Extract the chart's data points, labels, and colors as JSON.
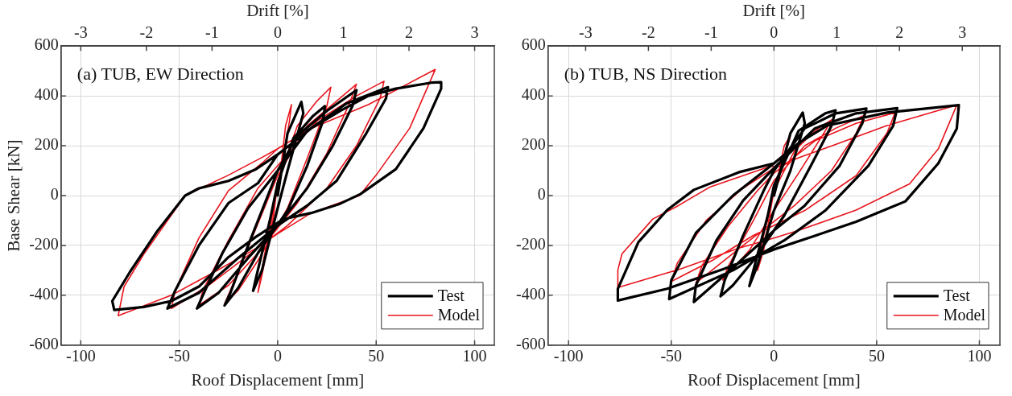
{
  "chart_data": [
    {
      "type": "line",
      "title": "(a) TUB, EW Direction",
      "xlabel": "Roof Displacement [mm]",
      "ylabel": "Base Shear [kN]",
      "x2label": "Drift [%]",
      "xlim": [
        -110,
        110
      ],
      "xticks": [
        -100,
        -50,
        0,
        50,
        100
      ],
      "ylim": [
        -600,
        600
      ],
      "yticks": [
        -600,
        -400,
        -200,
        0,
        200,
        400,
        600
      ],
      "x2lim": [
        -3.3,
        3.3
      ],
      "x2ticks": [
        -3,
        -2,
        -1,
        0,
        1,
        2,
        3
      ],
      "grid": true,
      "legend": "bottom right",
      "marker": "none",
      "line_style": "solid",
      "series": [
        {
          "name": "Test",
          "color": "#000000",
          "x": [
            0,
            5,
            12,
            13,
            5,
            0,
            -8,
            -12.5,
            -11,
            -4,
            0,
            8,
            18,
            24,
            23,
            15,
            5,
            -10,
            -20,
            -27,
            -24,
            -15,
            -5,
            0,
            10,
            25,
            40,
            38,
            28,
            15,
            0,
            -15,
            -30,
            -41,
            -38,
            -28,
            -15,
            0,
            15,
            35,
            56,
            55,
            45,
            30,
            15,
            0,
            -20,
            -40,
            -56,
            -52,
            -40,
            -25,
            -10,
            0,
            17,
            32,
            46,
            60,
            78,
            83,
            83,
            74,
            60,
            42,
            31,
            17,
            3,
            -11,
            -25,
            -40,
            -54,
            -68,
            -83,
            -84,
            -75,
            -61,
            -47,
            -40,
            -25,
            -11,
            0
          ],
          "values": [
            0,
            250,
            376,
            330,
            100,
            -50,
            -300,
            -382,
            -330,
            -100,
            50,
            230,
            320,
            359,
            300,
            120,
            -60,
            -230,
            -370,
            -441,
            -390,
            -200,
            0,
            100,
            240,
            340,
            423,
            360,
            200,
            30,
            -120,
            -250,
            -390,
            -453,
            -400,
            -230,
            -50,
            100,
            260,
            370,
            435,
            390,
            250,
            60,
            -40,
            -120,
            -250,
            -390,
            -453,
            -380,
            -200,
            -30,
            50,
            165,
            270,
            341,
            400,
            429,
            453,
            455,
            429,
            270,
            106,
            6,
            -35,
            -70,
            -94,
            -165,
            -247,
            -365,
            -423,
            -447,
            -459,
            -423,
            -306,
            -141,
            0,
            29,
            59,
            106,
            165
          ]
        },
        {
          "name": "Model",
          "color": "#e8141c",
          "x": [
            0,
            4,
            7,
            6,
            0,
            -7,
            -10,
            -8,
            -2,
            0,
            10,
            20,
            27,
            25,
            15,
            5,
            -10,
            -20,
            -27,
            -24,
            -12,
            0,
            15,
            30,
            40,
            37,
            25,
            10,
            -10,
            -25,
            -40,
            -38,
            -25,
            -10,
            0,
            20,
            40,
            54,
            52,
            40,
            25,
            5,
            -15,
            -35,
            -54,
            -52,
            -40,
            -25,
            -8,
            0,
            17,
            46,
            80,
            67,
            50,
            41.5,
            17,
            0,
            -11,
            -32,
            -54,
            -81,
            -78,
            -68,
            -47,
            -25,
            -8,
            0
          ],
          "values": [
            0,
            280,
            365,
            300,
            30,
            -250,
            -388,
            -320,
            -80,
            60,
            280,
            380,
            435,
            360,
            150,
            -50,
            -260,
            -380,
            -435,
            -380,
            -150,
            80,
            280,
            380,
            447,
            380,
            170,
            -30,
            -230,
            -360,
            -440,
            -380,
            -180,
            30,
            120,
            300,
            400,
            459,
            390,
            200,
            30,
            -120,
            -240,
            -360,
            -453,
            -380,
            -170,
            20,
            130,
            188,
            270,
            365,
            506,
            270,
            82,
            0,
            -70,
            -153,
            -212,
            -306,
            -400,
            -482,
            -365,
            -235,
            0,
            82,
            153,
            188
          ]
        }
      ]
    },
    {
      "type": "line",
      "title": "(b) TUB, NS Direction",
      "xlabel": "Roof Displacement [mm]",
      "x2label": "Drift [%]",
      "xlim": [
        -110,
        110
      ],
      "xticks": [
        -100,
        -50,
        0,
        50,
        100
      ],
      "ylim": [
        -600,
        600
      ],
      "yticks": [
        -600,
        -400,
        -200,
        0,
        200,
        400,
        600
      ],
      "x2lim": [
        -3.6,
        3.6
      ],
      "x2ticks": [
        -3,
        -2,
        -1,
        0,
        1,
        2,
        3
      ],
      "grid": true,
      "legend": "bottom right",
      "marker": "none",
      "line_style": "solid",
      "series": [
        {
          "name": "Test",
          "color": "#000000",
          "x": [
            0,
            8,
            14,
            15,
            8,
            0,
            -8,
            -12,
            -10,
            -3,
            0,
            12,
            25,
            30,
            28,
            18,
            5,
            -10,
            -20,
            -26,
            -24,
            -15,
            -5,
            0,
            15,
            30,
            45,
            43,
            32,
            15,
            0,
            -20,
            -39,
            -38,
            -28,
            -15,
            0,
            20,
            40,
            60,
            58,
            46,
            25,
            5,
            -20,
            -51,
            -50,
            -38,
            -20,
            0,
            12,
            26,
            55,
            90,
            89,
            80,
            64,
            40,
            19,
            0,
            -24,
            -52,
            -76,
            -76,
            -66,
            -52,
            -39,
            -17,
            0
          ],
          "values": [
            0,
            250,
            333,
            290,
            100,
            -60,
            -280,
            -363,
            -300,
            -80,
            40,
            260,
            330,
            342,
            280,
            120,
            -80,
            -260,
            -360,
            -404,
            -340,
            -160,
            20,
            100,
            270,
            330,
            349,
            290,
            120,
            -40,
            -140,
            -290,
            -427,
            -360,
            -180,
            -20,
            110,
            270,
            330,
            351,
            280,
            120,
            -60,
            -180,
            -300,
            -415,
            -340,
            -150,
            0,
            129,
            211,
            281,
            333,
            363,
            269,
            129,
            -23,
            -105,
            -164,
            -216,
            -293,
            -374,
            -421,
            -374,
            -187,
            -58,
            23,
            94,
            129
          ]
        },
        {
          "name": "Model",
          "color": "#e8141c",
          "x": [
            0,
            5,
            8,
            6,
            0,
            -6,
            -8,
            -5,
            0,
            10,
            20,
            28,
            25,
            12,
            0,
            -12,
            -25,
            -22,
            -10,
            0,
            15,
            30,
            44,
            40,
            28,
            10,
            -15,
            -38,
            -35,
            -22,
            -8,
            0,
            20,
            40,
            59,
            55,
            40,
            15,
            -10,
            -30,
            -50,
            -47,
            -33,
            -15,
            0,
            12,
            26,
            55,
            89,
            80,
            66,
            40,
            12,
            0,
            -17,
            -45,
            -76,
            -76,
            -74,
            -59,
            -48,
            -31,
            -2,
            0
          ],
          "values": [
            0,
            200,
            240,
            180,
            30,
            -200,
            -300,
            -220,
            20,
            180,
            260,
            304,
            260,
            90,
            -60,
            -220,
            -339,
            -280,
            -100,
            60,
            200,
            270,
            322,
            250,
            100,
            -40,
            -200,
            -351,
            -280,
            -120,
            20,
            90,
            220,
            290,
            333,
            250,
            80,
            -60,
            -160,
            -260,
            -345,
            -270,
            -100,
            30,
            110,
            152,
            193,
            281,
            363,
            187,
            47,
            -58,
            -140,
            -170,
            -211,
            -293,
            -369,
            -299,
            -234,
            -94,
            -47,
            35,
            117,
            117
          ]
        }
      ]
    }
  ]
}
